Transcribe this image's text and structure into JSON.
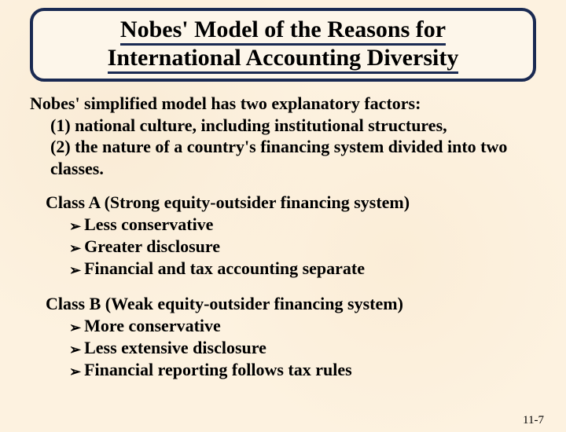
{
  "title": {
    "line1": "Nobes' Model of the Reasons for",
    "line2": "International Accounting Diversity"
  },
  "intro": {
    "lead": "Nobes' simplified model has two explanatory factors:",
    "factor1": "(1) national culture, including institutional structures,",
    "factor2": "(2) the nature of a country's financing system divided into two classes."
  },
  "classA": {
    "heading": "Class A (Strong equity-outsider financing system)",
    "items": [
      "Less conservative",
      "Greater disclosure",
      "Financial and tax accounting separate"
    ]
  },
  "classB": {
    "heading": "Class B (Weak equity-outsider financing system)",
    "items": [
      "More conservative",
      "Less extensive disclosure",
      "Financial reporting follows tax rules"
    ]
  },
  "footer": "11-7",
  "bullet_glyph": "➢",
  "colors": {
    "border": "#1a2a52",
    "background": "#fdf2e0",
    "text": "#000000"
  }
}
